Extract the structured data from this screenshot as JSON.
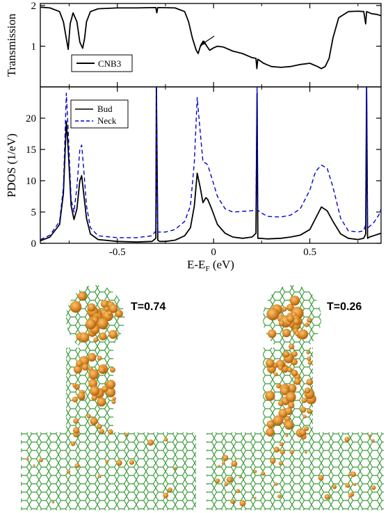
{
  "chart_data": [
    {
      "type": "line",
      "ylabel": "Transmission",
      "xlim": [
        -0.9,
        0.87
      ],
      "ylim": [
        0,
        2.05
      ],
      "yticks": [
        1,
        2
      ],
      "legend": {
        "placement": "bottom-left"
      },
      "annotation": "arrow pointing to peak near E-EF = -0.05 eV",
      "series": [
        {
          "name": "CNB3",
          "color": "#000000",
          "style": "solid",
          "x": [
            -0.9,
            -0.85,
            -0.8,
            -0.78,
            -0.76,
            -0.755,
            -0.745,
            -0.73,
            -0.71,
            -0.695,
            -0.68,
            -0.67,
            -0.66,
            -0.64,
            -0.6,
            -0.5,
            -0.4,
            -0.3,
            -0.295,
            -0.29,
            -0.2,
            -0.15,
            -0.13,
            -0.11,
            -0.09,
            -0.08,
            -0.07,
            -0.05,
            -0.035,
            -0.02,
            0,
            0.02,
            0.05,
            0.1,
            0.15,
            0.2,
            0.22,
            0.225,
            0.23,
            0.26,
            0.3,
            0.35,
            0.4,
            0.45,
            0.5,
            0.54,
            0.56,
            0.58,
            0.6,
            0.62,
            0.65,
            0.7,
            0.75,
            0.78,
            0.79,
            0.795,
            0.8,
            0.82,
            0.85,
            0.87
          ],
          "y": [
            1.96,
            1.94,
            1.85,
            1.6,
            1.05,
            0.92,
            1.55,
            1.82,
            1.6,
            1.1,
            0.95,
            1.2,
            1.6,
            1.85,
            1.92,
            1.94,
            1.94,
            1.95,
            1.82,
            1.95,
            1.94,
            1.85,
            1.6,
            1.2,
            0.9,
            0.82,
            0.98,
            1.12,
            1.0,
            0.9,
            0.96,
            1.0,
            0.98,
            0.88,
            0.82,
            0.72,
            0.7,
            0.45,
            0.68,
            0.58,
            0.5,
            0.48,
            0.5,
            0.55,
            0.58,
            0.5,
            0.45,
            0.5,
            0.7,
            1.2,
            1.7,
            1.85,
            1.86,
            1.85,
            1.55,
            1.85,
            1.84,
            1.8,
            1.78,
            1.75
          ]
        }
      ]
    },
    {
      "type": "line",
      "xlabel": "E-E",
      "xlabel_sub": "F",
      "xlabel_unit": " (eV)",
      "ylabel": "PDOS (1/eV)",
      "xlim": [
        -0.9,
        0.87
      ],
      "ylim": [
        0,
        25
      ],
      "xticks": [
        -0.5,
        0,
        0.5
      ],
      "xticklabels": [
        "-0.5",
        "0",
        "0.5"
      ],
      "yticks": [
        0,
        5,
        10,
        15,
        20
      ],
      "legend": {
        "placement": "top-left"
      },
      "series": [
        {
          "name": "Bud",
          "color": "#000000",
          "style": "solid",
          "x": [
            -0.9,
            -0.85,
            -0.8,
            -0.78,
            -0.765,
            -0.755,
            -0.74,
            -0.725,
            -0.71,
            -0.695,
            -0.685,
            -0.675,
            -0.66,
            -0.64,
            -0.6,
            -0.5,
            -0.4,
            -0.32,
            -0.3,
            -0.297,
            -0.29,
            -0.28,
            -0.25,
            -0.2,
            -0.15,
            -0.12,
            -0.1,
            -0.085,
            -0.07,
            -0.055,
            -0.04,
            -0.03,
            -0.01,
            0.02,
            0.06,
            0.1,
            0.15,
            0.2,
            0.22,
            0.226,
            0.23,
            0.24,
            0.28,
            0.35,
            0.4,
            0.45,
            0.5,
            0.53,
            0.56,
            0.59,
            0.62,
            0.66,
            0.7,
            0.75,
            0.78,
            0.79,
            0.795,
            0.8,
            0.81,
            0.83,
            0.86,
            0.87
          ],
          "y": [
            0.4,
            1.0,
            3.0,
            8.0,
            19.5,
            15.0,
            6.0,
            3.8,
            5.5,
            10.0,
            10.8,
            8.0,
            4.0,
            1.5,
            0.6,
            0.3,
            0.2,
            0.3,
            0.8,
            25,
            0.5,
            0.3,
            0.3,
            0.5,
            1.2,
            2.5,
            6.0,
            11.2,
            9.0,
            6.5,
            7.3,
            7.0,
            5.5,
            3.0,
            1.6,
            1.0,
            0.8,
            1.0,
            1.6,
            24,
            0.8,
            0.8,
            0.7,
            0.8,
            1.0,
            1.3,
            2.2,
            4.0,
            5.8,
            5.2,
            3.5,
            1.5,
            0.8,
            0.6,
            0.8,
            1.5,
            25,
            0.8,
            1.0,
            1.2,
            1.5,
            1.6
          ]
        },
        {
          "name": "Neck",
          "color": "#0000cc",
          "style": "dashed",
          "x": [
            -0.9,
            -0.85,
            -0.8,
            -0.78,
            -0.765,
            -0.755,
            -0.74,
            -0.725,
            -0.71,
            -0.695,
            -0.685,
            -0.675,
            -0.66,
            -0.64,
            -0.6,
            -0.5,
            -0.4,
            -0.32,
            -0.3,
            -0.297,
            -0.29,
            -0.28,
            -0.25,
            -0.2,
            -0.15,
            -0.12,
            -0.1,
            -0.085,
            -0.07,
            -0.055,
            -0.04,
            -0.03,
            -0.01,
            0.02,
            0.06,
            0.1,
            0.15,
            0.2,
            0.22,
            0.226,
            0.23,
            0.24,
            0.28,
            0.35,
            0.4,
            0.45,
            0.5,
            0.53,
            0.56,
            0.59,
            0.62,
            0.66,
            0.7,
            0.75,
            0.78,
            0.79,
            0.795,
            0.8,
            0.81,
            0.83,
            0.86,
            0.87
          ],
          "y": [
            0.6,
            1.3,
            3.5,
            9.0,
            24.0,
            18.0,
            7.0,
            5.0,
            9.0,
            15.0,
            15.7,
            12.0,
            6.0,
            2.5,
            1.2,
            0.9,
            0.9,
            1.2,
            2.0,
            25,
            1.8,
            1.8,
            1.8,
            2.2,
            3.5,
            6.0,
            13.0,
            23.3,
            18.0,
            13.0,
            12.8,
            12.5,
            10.5,
            7.5,
            5.5,
            5.0,
            5.1,
            5.2,
            5.6,
            25,
            5.3,
            5.0,
            4.3,
            4.2,
            4.5,
            5.5,
            8.5,
            11.5,
            12.5,
            12.0,
            9.0,
            4.0,
            2.0,
            1.8,
            2.0,
            3.0,
            25,
            2.4,
            2.7,
            3.2,
            4.6,
            5.5
          ]
        }
      ]
    }
  ],
  "panels": [
    {
      "label": "T=0.74"
    },
    {
      "label": "T=0.26"
    }
  ]
}
